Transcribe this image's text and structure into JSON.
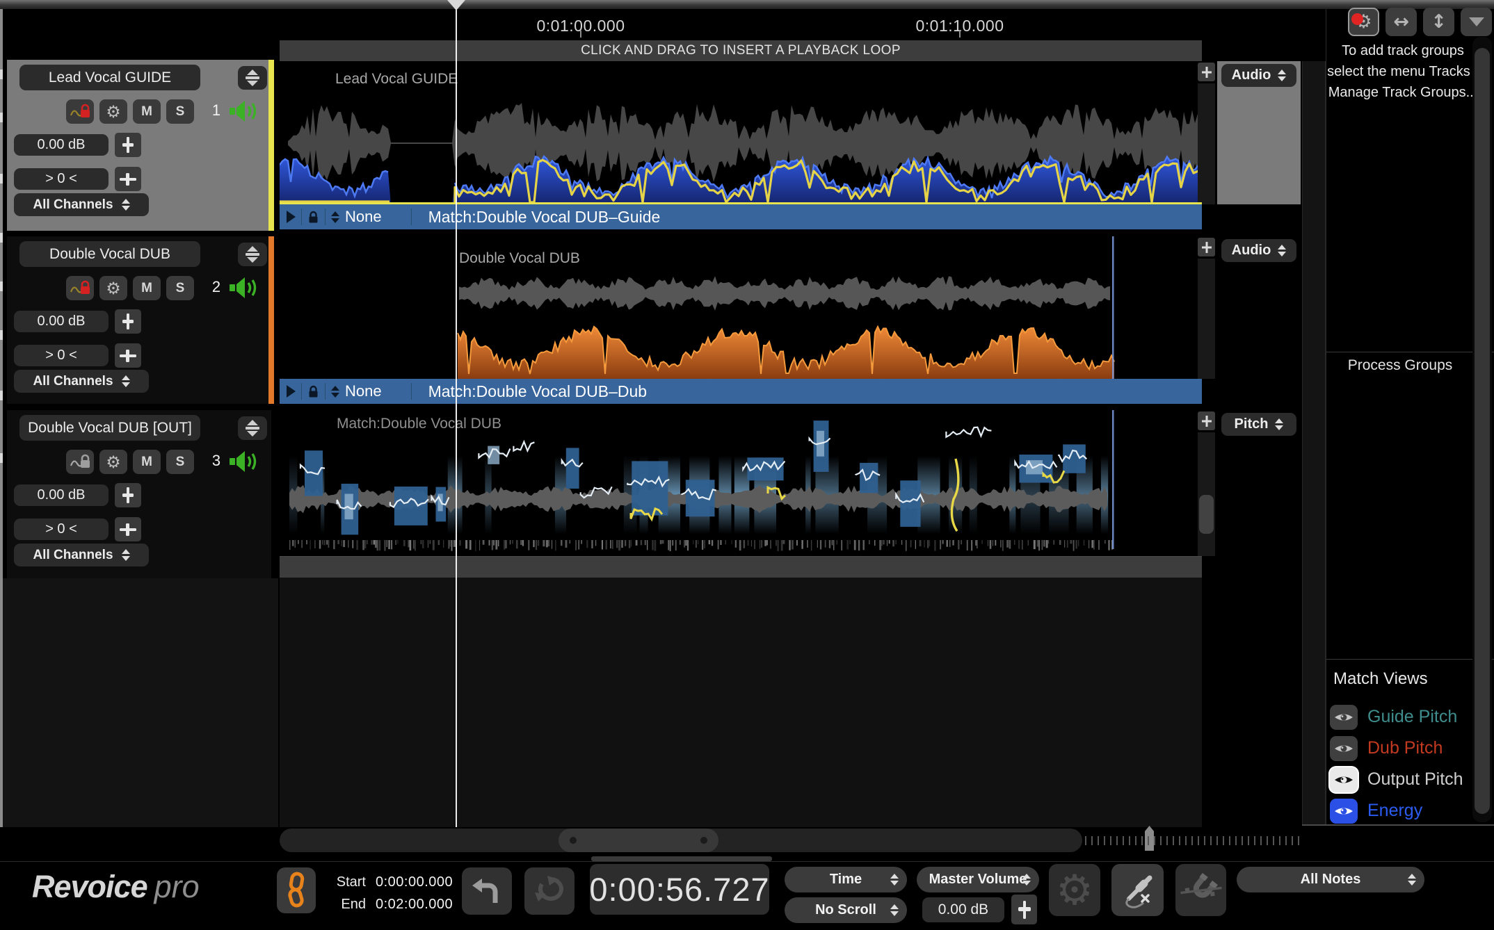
{
  "icons": {
    "gear": "⚙",
    "h_expand": "↔",
    "v_expand": "↕",
    "list": [
      "settings-alert-icon",
      "expand-horizontal-icon",
      "expand-vertical-icon",
      "dropdown-menu-icon",
      "link-icon",
      "undo-icon",
      "redo-icon",
      "audio-jack-icon",
      "magnet-off-icon",
      "speaker-icon",
      "waveform-lock-icon",
      "eye-icon",
      "play-icon",
      "lock-icon"
    ]
  },
  "timeline": {
    "labels": [
      "0:01:00.000",
      "0:01:10.000"
    ],
    "loop_bar_text": "CLICK AND DRAG TO INSERT A PLAYBACK LOOP"
  },
  "controls": {
    "mute": "M",
    "solo": "S"
  },
  "tracks": [
    {
      "name": "Lead Vocal GUIDE",
      "number": "1",
      "gain": "0.00 dB",
      "pan": "> 0 <",
      "channels": "All Channels",
      "type": "Audio",
      "lane_label": "Lead Vocal GUIDE",
      "match_mode": "None",
      "match_label": "Match:Double Vocal DUB–Guide",
      "color": "#e8e44e",
      "selected": true
    },
    {
      "name": "Double Vocal DUB",
      "number": "2",
      "gain": "0.00 dB",
      "pan": "> 0 <",
      "channels": "All Channels",
      "type": "Audio",
      "lane_label": "Double Vocal DUB",
      "match_mode": "None",
      "match_label": "Match:Double Vocal DUB–Dub",
      "color": "#e2782a",
      "selected": false
    },
    {
      "name": "Double Vocal DUB [OUT]",
      "number": "3",
      "gain": "0.00 dB",
      "pan": "> 0 <",
      "channels": "All Channels",
      "type": "Pitch",
      "lane_label": "Match:Double Vocal DUB",
      "match_mode": null,
      "match_label": null,
      "color": null,
      "selected": false
    }
  ],
  "right_panel": {
    "track_groups_hint": "To add track groups select the menu Tracks - Manage Track Groups...",
    "process_groups_title": "Process Groups",
    "match_views": {
      "title": "Match Views",
      "items": [
        {
          "label": "Guide Pitch",
          "color": "#3f8d8d",
          "eye_bg": "#3f3f3f",
          "eye_fg": "#c6c6c6",
          "eye_border": null
        },
        {
          "label": "Dub Pitch",
          "color": "#c33a20",
          "eye_bg": "#3f3f3f",
          "eye_fg": "#c6c6c6",
          "eye_border": null
        },
        {
          "label": "Output Pitch",
          "color": "#cfcfcf",
          "eye_bg": "#e9e9e9",
          "eye_fg": "#101010",
          "eye_border": "#ffffff"
        },
        {
          "label": "Energy",
          "color": "#2b5cf2",
          "eye_bg": "#2b50e6",
          "eye_fg": "#ffffff",
          "eye_border": null
        }
      ]
    }
  },
  "transport": {
    "brand_bold": "Revoice",
    "brand_light": "pro",
    "start_label": "Start",
    "start_value": "0:00:00.000",
    "end_label": "End",
    "end_value": "0:02:00.000",
    "time_display": "0:00:56.727",
    "time_mode": "Time",
    "scroll_mode": "No Scroll",
    "master_volume_label": "Master Volume",
    "master_gain": "0.00 dB",
    "notes_filter": "All Notes"
  },
  "colors": {
    "track1_stripe": "#e8e44e",
    "track2_stripe": "#e2782a",
    "match_bar": "#38659b",
    "guide_wave": "#3059dd",
    "dub_wave": "#e07b28",
    "pitch_line": "#e6d448",
    "speaker_green": "#3bb226",
    "link_orange": "#e8831c",
    "alert_red": "#e02424"
  }
}
